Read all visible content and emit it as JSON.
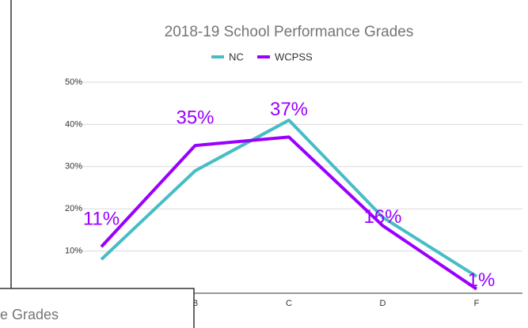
{
  "chart_data": {
    "type": "line",
    "title": "2018-19 School Performance Grades",
    "categories": [
      null,
      "B",
      "C",
      "D",
      "F"
    ],
    "series": [
      {
        "name": "NC",
        "color": "#46bdc6",
        "values": [
          8,
          29,
          41,
          18,
          4
        ]
      },
      {
        "name": "WCPSS",
        "color": "#9900ff",
        "values": [
          11,
          35,
          37,
          16,
          1
        ],
        "value_labels": [
          "11%",
          "35%",
          "37%",
          "16%",
          "1%"
        ]
      }
    ],
    "ylim": [
      0,
      50
    ],
    "yticks": [
      {
        "value": 10,
        "label": "10%"
      },
      {
        "value": 20,
        "label": "20%"
      },
      {
        "value": 30,
        "label": "30%"
      },
      {
        "value": 40,
        "label": "40%"
      },
      {
        "value": 50,
        "label": "50%"
      }
    ],
    "grid": true,
    "legend": "top"
  },
  "overlay": {
    "text": "e Grades"
  }
}
